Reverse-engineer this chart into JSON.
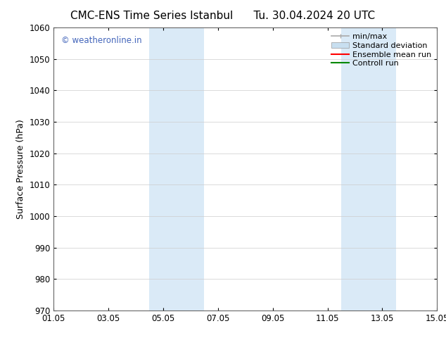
{
  "title_left": "CMC-ENS Time Series Istanbul",
  "title_right": "Tu. 30.04.2024 20 UTC",
  "ylabel": "Surface Pressure (hPa)",
  "xlabel_ticks": [
    "01.05",
    "03.05",
    "05.05",
    "07.05",
    "09.05",
    "11.05",
    "13.05",
    "15.05"
  ],
  "xlim": [
    0,
    14
  ],
  "ylim": [
    970,
    1060
  ],
  "yticks": [
    970,
    980,
    990,
    1000,
    1010,
    1020,
    1030,
    1040,
    1050,
    1060
  ],
  "background_color": "#ffffff",
  "plot_bg_color": "#ffffff",
  "shaded_regions": [
    {
      "xmin": 3.5,
      "xmax": 5.5,
      "color": "#daeaf7"
    },
    {
      "xmin": 10.5,
      "xmax": 12.5,
      "color": "#daeaf7"
    }
  ],
  "watermark_text": "© weatheronline.in",
  "watermark_color": "#4466bb",
  "legend_items": [
    {
      "label": "min/max",
      "color": "#aaaaaa",
      "lw": 1.2,
      "style": "line_with_caps"
    },
    {
      "label": "Standard deviation",
      "color": "#c8dff0",
      "lw": 8,
      "style": "band"
    },
    {
      "label": "Ensemble mean run",
      "color": "#ff0000",
      "lw": 1.5,
      "style": "line"
    },
    {
      "label": "Controll run",
      "color": "#008800",
      "lw": 1.5,
      "style": "line"
    }
  ],
  "tick_label_fontsize": 8.5,
  "axis_label_fontsize": 9,
  "title_fontsize": 11,
  "watermark_fontsize": 8.5,
  "legend_fontsize": 8,
  "grid_color": "#cccccc",
  "grid_lw": 0.5
}
